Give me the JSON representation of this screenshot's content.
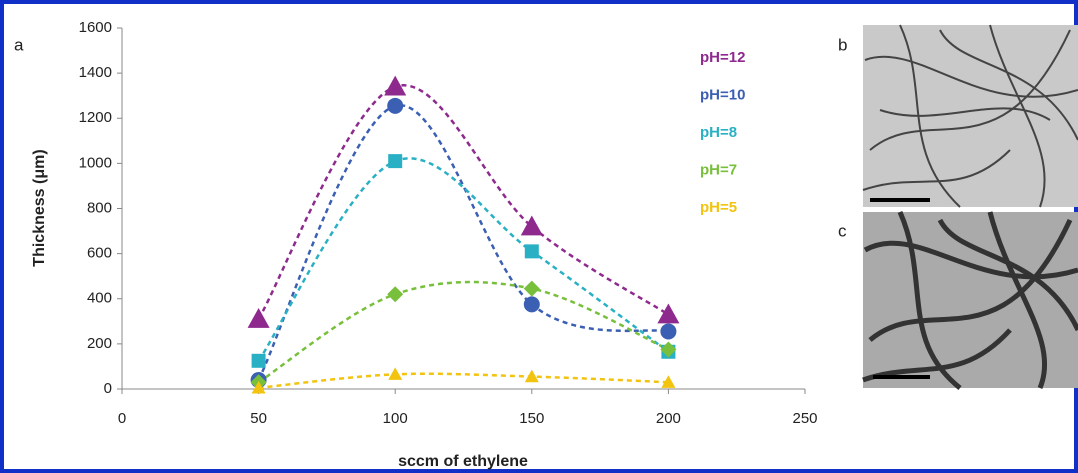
{
  "panel_labels": [
    "a",
    "b",
    "c"
  ],
  "chart_data": {
    "type": "line",
    "x_label": "sccm of ethylene",
    "y_label": "Thickness (μm)",
    "x": [
      50,
      100,
      150,
      200
    ],
    "xlim": [
      0,
      250
    ],
    "xticks": [
      0,
      50,
      100,
      150,
      200,
      250
    ],
    "ylim": [
      0,
      1600
    ],
    "yticks": [
      0,
      200,
      400,
      600,
      800,
      1000,
      1200,
      1400,
      1600
    ],
    "grid": false,
    "line_style": "dashed",
    "series": [
      {
        "name": "pH=12",
        "color": "#8e2a8e",
        "marker": "triangle",
        "values": [
          310,
          1340,
          720,
          330
        ]
      },
      {
        "name": "pH=10",
        "color": "#3b5fb3",
        "marker": "circle",
        "values": [
          40,
          1255,
          375,
          255
        ]
      },
      {
        "name": "pH=8",
        "color": "#2ab0c4",
        "marker": "square",
        "values": [
          125,
          1010,
          610,
          165
        ]
      },
      {
        "name": "pH=7",
        "color": "#78bf3c",
        "marker": "diamond",
        "values": [
          30,
          420,
          445,
          175
        ]
      },
      {
        "name": "pH=5",
        "color": "#f2c40f",
        "marker": "small-triangle",
        "values": [
          5,
          65,
          55,
          30
        ]
      }
    ]
  }
}
